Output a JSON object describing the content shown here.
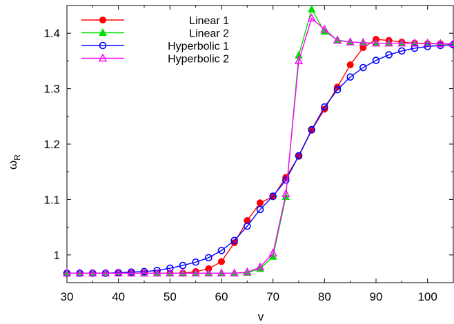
{
  "chart_data": {
    "type": "line",
    "xlabel": "v",
    "ylabel": "ω",
    "ylabel_sub": "R",
    "xlim": [
      30,
      105
    ],
    "ylim": [
      0.95,
      1.45
    ],
    "x_ticks": [
      30,
      40,
      50,
      60,
      70,
      80,
      90,
      100
    ],
    "y_ticks": [
      1.0,
      1.1,
      1.2,
      1.3,
      1.4
    ],
    "x_tick_labels": [
      "30",
      "40",
      "50",
      "60",
      "70",
      "80",
      "90",
      "100"
    ],
    "y_tick_labels": [
      "1",
      "1.1",
      "1.2",
      "1.3",
      "1.4"
    ],
    "grid": false,
    "legend_position": "top-left",
    "series": [
      {
        "name": "Linear 1",
        "color": "#ff0000",
        "marker": "filled-circle",
        "x": [
          30,
          32.5,
          35,
          37.5,
          40,
          42.5,
          45,
          47.5,
          50,
          52.5,
          55,
          57.5,
          60,
          62.5,
          65,
          67.5,
          70,
          72.5,
          75,
          77.5,
          80,
          82.5,
          85,
          87.5,
          90,
          92.5,
          95,
          97.5,
          100,
          102.5,
          105
        ],
        "y": [
          0.967,
          0.967,
          0.967,
          0.967,
          0.967,
          0.967,
          0.967,
          0.967,
          0.967,
          0.967,
          0.97,
          0.975,
          0.988,
          1.022,
          1.062,
          1.094,
          1.105,
          1.14,
          1.178,
          1.225,
          1.263,
          1.303,
          1.343,
          1.374,
          1.389,
          1.387,
          1.384,
          1.382,
          1.381,
          1.381,
          1.38
        ]
      },
      {
        "name": "Linear 2",
        "color": "#00dd00",
        "marker": "filled-triangle",
        "x": [
          30,
          32.5,
          35,
          37.5,
          40,
          42.5,
          45,
          47.5,
          50,
          52.5,
          55,
          57.5,
          60,
          62.5,
          65,
          67.5,
          70,
          72.5,
          75,
          77.5,
          80,
          82.5,
          85,
          87.5,
          90,
          92.5,
          95,
          97.5,
          100,
          102.5,
          105
        ],
        "y": [
          0.967,
          0.967,
          0.967,
          0.967,
          0.967,
          0.967,
          0.967,
          0.967,
          0.967,
          0.967,
          0.967,
          0.967,
          0.967,
          0.967,
          0.968,
          0.975,
          0.997,
          1.105,
          1.36,
          1.443,
          1.403,
          1.388,
          1.384,
          1.383,
          1.382,
          1.382,
          1.382,
          1.382,
          1.381,
          1.381,
          1.381
        ]
      },
      {
        "name": "Hyperbolic 1",
        "color": "#0000ff",
        "marker": "open-circle",
        "x": [
          30,
          32.5,
          35,
          37.5,
          40,
          42.5,
          45,
          47.5,
          50,
          52.5,
          55,
          57.5,
          60,
          62.5,
          65,
          67.5,
          70,
          72.5,
          75,
          77.5,
          80,
          82.5,
          85,
          87.5,
          90,
          92.5,
          95,
          97.5,
          100,
          102.5,
          105
        ],
        "y": [
          0.967,
          0.967,
          0.967,
          0.967,
          0.968,
          0.969,
          0.97,
          0.972,
          0.976,
          0.981,
          0.987,
          0.995,
          1.008,
          1.026,
          1.052,
          1.082,
          1.106,
          1.135,
          1.179,
          1.226,
          1.267,
          1.298,
          1.321,
          1.338,
          1.351,
          1.361,
          1.368,
          1.373,
          1.376,
          1.378,
          1.379
        ]
      },
      {
        "name": "Hyperbolic 2",
        "color": "#ff00ff",
        "marker": "open-triangle",
        "x": [
          30,
          32.5,
          35,
          37.5,
          40,
          42.5,
          45,
          47.5,
          50,
          52.5,
          55,
          57.5,
          60,
          62.5,
          65,
          67.5,
          70,
          72.5,
          75,
          77.5,
          80,
          82.5,
          85,
          87.5,
          90,
          92.5,
          95,
          97.5,
          100,
          102.5,
          105
        ],
        "y": [
          0.967,
          0.967,
          0.967,
          0.967,
          0.967,
          0.967,
          0.967,
          0.967,
          0.967,
          0.967,
          0.967,
          0.967,
          0.967,
          0.967,
          0.969,
          0.978,
          1.003,
          1.11,
          1.35,
          1.427,
          1.407,
          1.387,
          1.384,
          1.383,
          1.382,
          1.382,
          1.382,
          1.382,
          1.382,
          1.381,
          1.381
        ]
      }
    ]
  }
}
